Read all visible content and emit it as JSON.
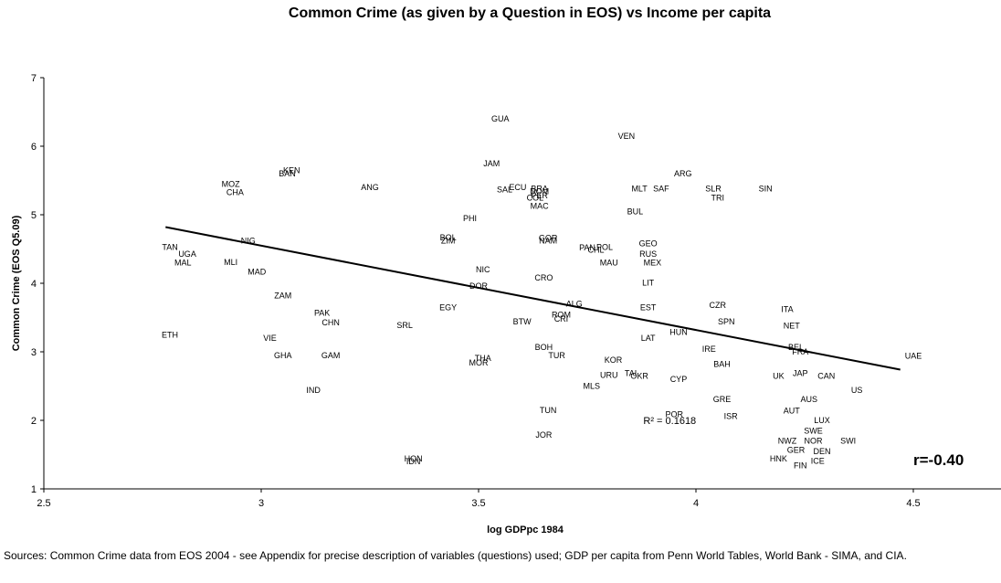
{
  "chart_data": {
    "type": "scatter",
    "title": "Common Crime (as given by a Question in EOS) vs Income per capita",
    "xlabel": "log GDPpc 1984",
    "ylabel": "Common Crime (EOS Q5.09)",
    "xlim": [
      2.5,
      4.7
    ],
    "ylim": [
      1,
      7
    ],
    "xticks": [
      "2.5",
      "3",
      "3.5",
      "4",
      "4.5"
    ],
    "yticks": [
      "1",
      "2",
      "3",
      "4",
      "5",
      "6",
      "7"
    ],
    "grid": false,
    "trendline": {
      "x": [
        2.78,
        4.47
      ],
      "y": [
        4.82,
        2.74
      ]
    },
    "r2_label": "R² = 0.1618",
    "r_label": "r=-0.40",
    "points": [
      {
        "label": "GUA",
        "x": 3.55,
        "y": 6.4
      },
      {
        "label": "VEN",
        "x": 3.84,
        "y": 6.15
      },
      {
        "label": "JAM",
        "x": 3.53,
        "y": 5.75
      },
      {
        "label": "KEN",
        "x": 3.07,
        "y": 5.65
      },
      {
        "label": "BAN",
        "x": 3.06,
        "y": 5.6
      },
      {
        "label": "ARG",
        "x": 3.97,
        "y": 5.6
      },
      {
        "label": "MOZ",
        "x": 2.93,
        "y": 5.45
      },
      {
        "label": "CHA",
        "x": 2.94,
        "y": 5.33
      },
      {
        "label": "ANG",
        "x": 3.25,
        "y": 5.4
      },
      {
        "label": "SAL",
        "x": 3.56,
        "y": 5.37
      },
      {
        "label": "ECU",
        "x": 3.59,
        "y": 5.4
      },
      {
        "label": "BRA",
        "x": 3.64,
        "y": 5.38
      },
      {
        "label": "DOM",
        "x": 3.64,
        "y": 5.34
      },
      {
        "label": "PER",
        "x": 3.64,
        "y": 5.28
      },
      {
        "label": "COL",
        "x": 3.63,
        "y": 5.25
      },
      {
        "label": "MAC",
        "x": 3.64,
        "y": 5.13
      },
      {
        "label": "MLT",
        "x": 3.87,
        "y": 5.38
      },
      {
        "label": "SAF",
        "x": 3.92,
        "y": 5.38
      },
      {
        "label": "SLR",
        "x": 4.04,
        "y": 5.38
      },
      {
        "label": "SIN",
        "x": 4.16,
        "y": 5.38
      },
      {
        "label": "TRI",
        "x": 4.05,
        "y": 5.25
      },
      {
        "label": "BUL",
        "x": 3.86,
        "y": 5.05
      },
      {
        "label": "PHI",
        "x": 3.48,
        "y": 4.95
      },
      {
        "label": "NIG",
        "x": 2.97,
        "y": 4.62
      },
      {
        "label": "BOL",
        "x": 3.43,
        "y": 4.67
      },
      {
        "label": "ZIM",
        "x": 3.43,
        "y": 4.62
      },
      {
        "label": "GOR",
        "x": 3.66,
        "y": 4.66
      },
      {
        "label": "NAM",
        "x": 3.66,
        "y": 4.62
      },
      {
        "label": "GEO",
        "x": 3.89,
        "y": 4.58
      },
      {
        "label": "TAN",
        "x": 2.79,
        "y": 4.53
      },
      {
        "label": "PAN",
        "x": 3.75,
        "y": 4.52
      },
      {
        "label": "POL",
        "x": 3.79,
        "y": 4.53
      },
      {
        "label": "CHL",
        "x": 3.77,
        "y": 4.49
      },
      {
        "label": "UGA",
        "x": 2.83,
        "y": 4.43
      },
      {
        "label": "RUS",
        "x": 3.89,
        "y": 4.43
      },
      {
        "label": "MAL",
        "x": 2.82,
        "y": 4.3
      },
      {
        "label": "MLI",
        "x": 2.93,
        "y": 4.31
      },
      {
        "label": "MAU",
        "x": 3.8,
        "y": 4.3
      },
      {
        "label": "MEX",
        "x": 3.9,
        "y": 4.3
      },
      {
        "label": "NIC",
        "x": 3.51,
        "y": 4.2
      },
      {
        "label": "MAD",
        "x": 2.99,
        "y": 4.17
      },
      {
        "label": "CRO",
        "x": 3.65,
        "y": 4.08
      },
      {
        "label": "LIT",
        "x": 3.89,
        "y": 4.01
      },
      {
        "label": "DOR",
        "x": 3.5,
        "y": 3.96
      },
      {
        "label": "ZAM",
        "x": 3.05,
        "y": 3.82
      },
      {
        "label": "ALG",
        "x": 3.72,
        "y": 3.7
      },
      {
        "label": "EGY",
        "x": 3.43,
        "y": 3.65
      },
      {
        "label": "EST",
        "x": 3.89,
        "y": 3.65
      },
      {
        "label": "CZR",
        "x": 4.05,
        "y": 3.68
      },
      {
        "label": "ITA",
        "x": 4.21,
        "y": 3.62
      },
      {
        "label": "PAK",
        "x": 3.14,
        "y": 3.57
      },
      {
        "label": "ROM",
        "x": 3.69,
        "y": 3.54
      },
      {
        "label": "CRI",
        "x": 3.69,
        "y": 3.48
      },
      {
        "label": "CHN",
        "x": 3.16,
        "y": 3.43
      },
      {
        "label": "SRL",
        "x": 3.33,
        "y": 3.39
      },
      {
        "label": "BTW",
        "x": 3.6,
        "y": 3.44
      },
      {
        "label": "SPN",
        "x": 4.07,
        "y": 3.44
      },
      {
        "label": "NET",
        "x": 4.22,
        "y": 3.38
      },
      {
        "label": "HUN",
        "x": 3.96,
        "y": 3.29
      },
      {
        "label": "ETH",
        "x": 2.79,
        "y": 3.25
      },
      {
        "label": "VIE",
        "x": 3.02,
        "y": 3.2
      },
      {
        "label": "LAT",
        "x": 3.89,
        "y": 3.2
      },
      {
        "label": "BOH",
        "x": 3.65,
        "y": 3.07
      },
      {
        "label": "IRE",
        "x": 4.03,
        "y": 3.04
      },
      {
        "label": "BEL",
        "x": 4.23,
        "y": 3.07
      },
      {
        "label": "FRA",
        "x": 4.24,
        "y": 3.0
      },
      {
        "label": "GHA",
        "x": 3.05,
        "y": 2.95
      },
      {
        "label": "GAM",
        "x": 3.16,
        "y": 2.95
      },
      {
        "label": "THA",
        "x": 3.51,
        "y": 2.91
      },
      {
        "label": "TUR",
        "x": 3.68,
        "y": 2.95
      },
      {
        "label": "MOR",
        "x": 3.5,
        "y": 2.84
      },
      {
        "label": "KOR",
        "x": 3.81,
        "y": 2.88
      },
      {
        "label": "BAH",
        "x": 4.06,
        "y": 2.82
      },
      {
        "label": "UAE",
        "x": 4.5,
        "y": 2.94
      },
      {
        "label": "URU",
        "x": 3.8,
        "y": 2.66
      },
      {
        "label": "TAI",
        "x": 3.85,
        "y": 2.69
      },
      {
        "label": "OKR",
        "x": 3.87,
        "y": 2.65
      },
      {
        "label": "CYP",
        "x": 3.96,
        "y": 2.6
      },
      {
        "label": "UK",
        "x": 4.19,
        "y": 2.65
      },
      {
        "label": "JAP",
        "x": 4.24,
        "y": 2.69
      },
      {
        "label": "CAN",
        "x": 4.3,
        "y": 2.65
      },
      {
        "label": "MLS",
        "x": 3.76,
        "y": 2.5
      },
      {
        "label": "IND",
        "x": 3.12,
        "y": 2.44
      },
      {
        "label": "US",
        "x": 4.37,
        "y": 2.44
      },
      {
        "label": "GRE",
        "x": 4.06,
        "y": 2.31
      },
      {
        "label": "AUS",
        "x": 4.26,
        "y": 2.31
      },
      {
        "label": "TUN",
        "x": 3.66,
        "y": 2.15
      },
      {
        "label": "AUT",
        "x": 4.22,
        "y": 2.14
      },
      {
        "label": "POR",
        "x": 3.95,
        "y": 2.09
      },
      {
        "label": "ISR",
        "x": 4.08,
        "y": 2.06
      },
      {
        "label": "LUX",
        "x": 4.29,
        "y": 2.0
      },
      {
        "label": "SWE",
        "x": 4.27,
        "y": 1.85
      },
      {
        "label": "JOR",
        "x": 3.65,
        "y": 1.79
      },
      {
        "label": "NWZ",
        "x": 4.21,
        "y": 1.7
      },
      {
        "label": "NOR",
        "x": 4.27,
        "y": 1.7
      },
      {
        "label": "SWI",
        "x": 4.35,
        "y": 1.7
      },
      {
        "label": "GER",
        "x": 4.23,
        "y": 1.57
      },
      {
        "label": "DEN",
        "x": 4.29,
        "y": 1.55
      },
      {
        "label": "HON",
        "x": 3.35,
        "y": 1.44
      },
      {
        "label": "IDN",
        "x": 3.35,
        "y": 1.4
      },
      {
        "label": "HNK",
        "x": 4.19,
        "y": 1.44
      },
      {
        "label": "ICE",
        "x": 4.28,
        "y": 1.41
      },
      {
        "label": "FIN",
        "x": 4.24,
        "y": 1.34
      }
    ]
  },
  "source_note": "Sources: Common Crime data from EOS 2004 - see Appendix for precise description of variables (questions) used; GDP per capita from Penn World Tables, World Bank - SIMA, and CIA."
}
